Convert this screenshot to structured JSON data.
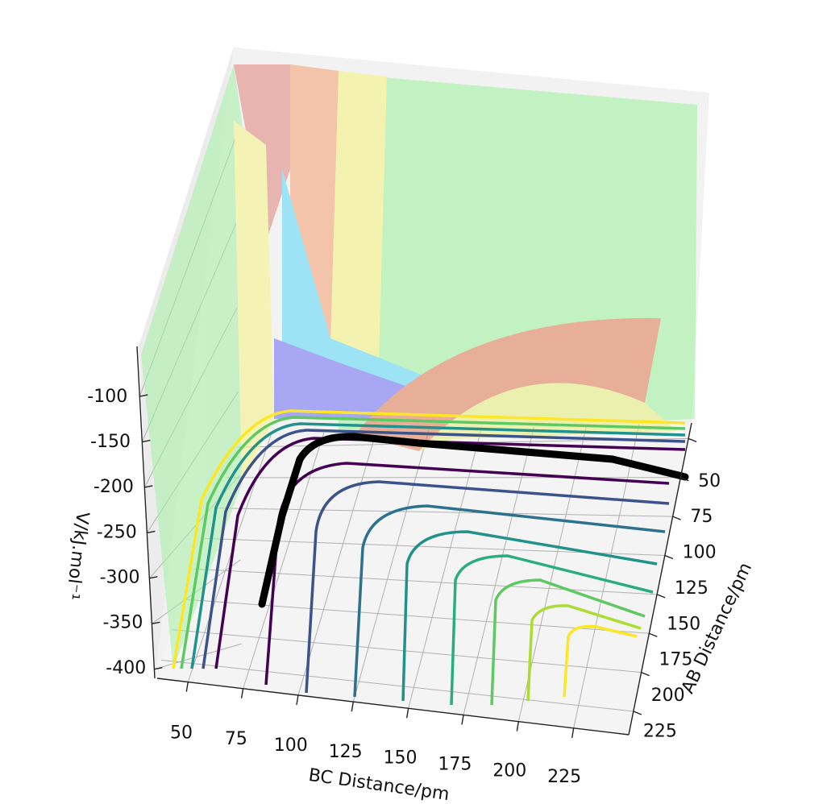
{
  "chart_data": {
    "type": "surface",
    "x_label": "BC Distance/pm",
    "y_label": "AB Distance/pm",
    "z_label": "V/kJ.mol⁻¹",
    "xlim": [
      36,
      250
    ],
    "xticks": [
      50,
      75,
      100,
      125,
      150,
      175,
      200,
      225
    ],
    "ylim": [
      40,
      240
    ],
    "yticks": [
      50,
      75,
      100,
      125,
      150,
      175,
      200,
      225
    ],
    "zlim": [
      -410,
      -45
    ],
    "zticks": [
      -100,
      -150,
      -200,
      -250,
      -300,
      -350,
      -400
    ],
    "grid": true
  }
}
